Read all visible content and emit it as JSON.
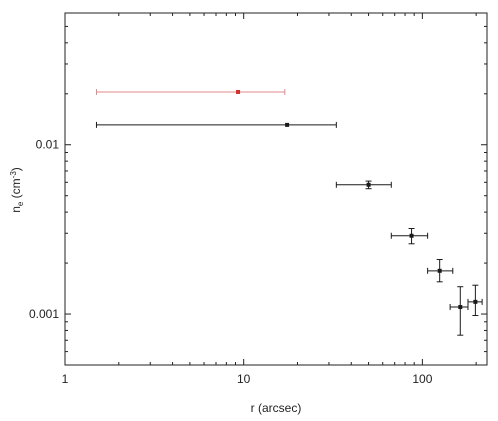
{
  "chart_data": {
    "type": "scatter",
    "xscale": "log",
    "yscale": "log",
    "xlim": [
      1,
      230
    ],
    "ylim": [
      0.0005,
      0.06
    ],
    "grid": false,
    "xlabel": "r (arcsec)",
    "ylabel_main": "n",
    "ylabel_sub": "e",
    "ylabel_unit": " (cm",
    "ylabel_exp": "-3",
    "ylabel_close": ")",
    "xticks": [
      {
        "value": 1,
        "label": "1"
      },
      {
        "value": 10,
        "label": "10"
      },
      {
        "value": 100,
        "label": "100"
      }
    ],
    "yticks": [
      {
        "value": 0.001,
        "label": "0.001"
      },
      {
        "value": 0.01,
        "label": "0.01"
      }
    ],
    "series": [
      {
        "color": "#d0312d",
        "errcolor": "#e08a8a",
        "points": [
          {
            "x": 9.3,
            "y": 0.0205,
            "xlo": 1.5,
            "xhi": 17
          }
        ]
      },
      {
        "color": "#1a1a1a",
        "errcolor": "#1a1a1a",
        "points": [
          {
            "x": 17.5,
            "y": 0.0131,
            "xlo": 1.5,
            "xhi": 33
          },
          {
            "x": 50,
            "y": 0.0058,
            "xlo": 33,
            "xhi": 67,
            "ylo": 0.0055,
            "yhi": 0.0061
          },
          {
            "x": 87,
            "y": 0.0029,
            "xlo": 67,
            "xhi": 107,
            "ylo": 0.0026,
            "yhi": 0.0032
          },
          {
            "x": 125,
            "y": 0.0018,
            "xlo": 107,
            "xhi": 148,
            "ylo": 0.00155,
            "yhi": 0.0021
          },
          {
            "x": 163,
            "y": 0.0011,
            "xlo": 143,
            "xhi": 180,
            "ylo": 0.00075,
            "yhi": 0.00145
          },
          {
            "x": 198,
            "y": 0.00118,
            "xlo": 180,
            "xhi": 216,
            "ylo": 0.00098,
            "yhi": 0.00148
          }
        ]
      }
    ]
  }
}
